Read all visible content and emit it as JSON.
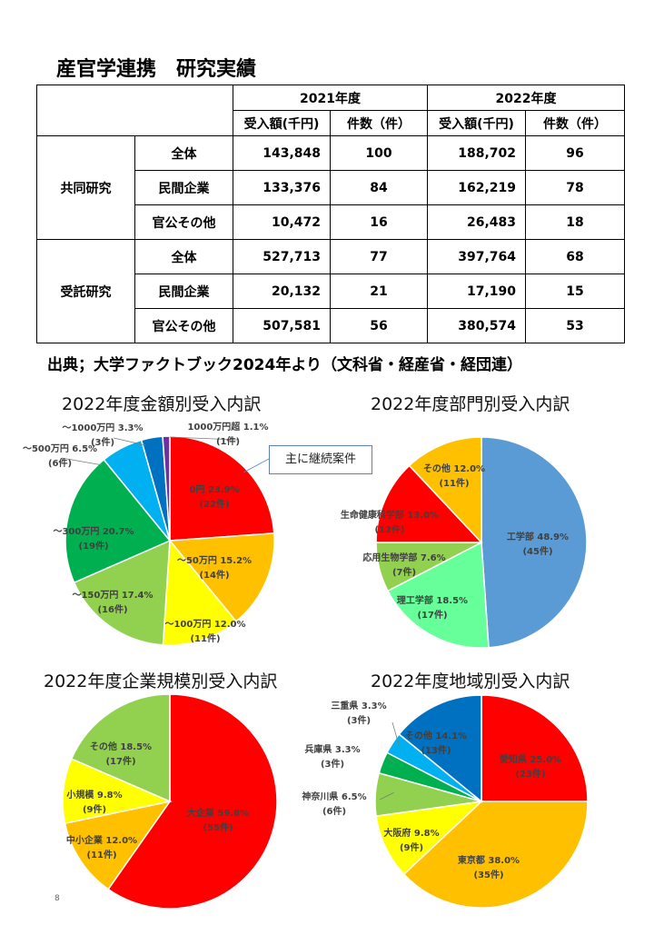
{
  "page": {
    "title": "産官学連携　研究実績",
    "source": "出典；大学ファクトブック2024年より（文科省・経産省・経団連）",
    "page_number": "8"
  },
  "table": {
    "years": [
      "2021年度",
      "2022年度"
    ],
    "subheaders": [
      "受入額(千円)",
      "件数（件）",
      "受入額(千円)",
      "件数（件）"
    ],
    "groups": [
      {
        "name": "共同研究",
        "rows": [
          {
            "label": "全体",
            "v": [
              "143,848",
              "100",
              "188,702",
              "96"
            ]
          },
          {
            "label": "民間企業",
            "v": [
              "133,376",
              "84",
              "162,219",
              "78"
            ]
          },
          {
            "label": "官公その他",
            "v": [
              "10,472",
              "16",
              "26,483",
              "18"
            ]
          }
        ]
      },
      {
        "name": "受託研究",
        "rows": [
          {
            "label": "全体",
            "v": [
              "527,713",
              "77",
              "397,764",
              "68"
            ]
          },
          {
            "label": "民間企業",
            "v": [
              "20,132",
              "21",
              "17,190",
              "15"
            ]
          },
          {
            "label": "官公その他",
            "v": [
              "507,581",
              "56",
              "380,574",
              "53"
            ]
          }
        ]
      }
    ]
  },
  "chart_data": [
    {
      "type": "pie",
      "title": "2022年度金額別受入内訳",
      "annotation": "主に継続案件",
      "slices": [
        {
          "name": "0円",
          "pct": "23.9%",
          "count": "(22件)",
          "value": 23.9,
          "color": "#ff0000"
        },
        {
          "name": "～50万円",
          "pct": "15.2%",
          "count": "(14件)",
          "value": 15.2,
          "color": "#ffc000"
        },
        {
          "name": "～100万円",
          "pct": "12.0%",
          "count": "(11件)",
          "value": 12.0,
          "color": "#ffff00"
        },
        {
          "name": "～150万円",
          "pct": "17.4%",
          "count": "(16件)",
          "value": 17.4,
          "color": "#92d050"
        },
        {
          "name": "～300万円",
          "pct": "20.7%",
          "count": "(19件)",
          "value": 20.7,
          "color": "#00b050"
        },
        {
          "name": "～500万円",
          "pct": "6.5%",
          "count": "(6件)",
          "value": 6.5,
          "color": "#00b0f0"
        },
        {
          "name": "～1000万円",
          "pct": "3.3%",
          "count": "(3件)",
          "value": 3.3,
          "color": "#0070c0"
        },
        {
          "name": "1000万円超",
          "pct": "1.1%",
          "count": "(1件)",
          "value": 1.1,
          "color": "#7030a0"
        }
      ]
    },
    {
      "type": "pie",
      "title": "2022年度部門別受入内訳",
      "slices": [
        {
          "name": "工学部",
          "pct": "48.9%",
          "count": "(45件)",
          "value": 48.9,
          "color": "#5b9bd5"
        },
        {
          "name": "理工学部",
          "pct": "18.5%",
          "count": "(17件)",
          "value": 18.5,
          "color": "#66ff99"
        },
        {
          "name": "応用生物学部",
          "pct": "7.6%",
          "count": "(7件)",
          "value": 7.6,
          "color": "#92d050"
        },
        {
          "name": "生命健康科学部",
          "pct": "13.0%",
          "count": "(12件)",
          "value": 13.0,
          "color": "#ff0000"
        },
        {
          "name": "その他",
          "pct": "12.0%",
          "count": "(11件)",
          "value": 12.0,
          "color": "#ffc000"
        }
      ]
    },
    {
      "type": "pie",
      "title": "2022年度企業規模別受入内訳",
      "slices": [
        {
          "name": "大企業",
          "pct": "59.8%",
          "count": "(55件)",
          "value": 59.8,
          "color": "#ff0000"
        },
        {
          "name": "中小企業",
          "pct": "12.0%",
          "count": "(11件)",
          "value": 12.0,
          "color": "#ffc000"
        },
        {
          "name": "小規模",
          "pct": "9.8%",
          "count": "(9件)",
          "value": 9.8,
          "color": "#ffff00"
        },
        {
          "name": "その他",
          "pct": "18.5%",
          "count": "(17件)",
          "value": 18.5,
          "color": "#92d050"
        }
      ]
    },
    {
      "type": "pie",
      "title": "2022年度地域別受入内訳",
      "slices": [
        {
          "name": "愛知県",
          "pct": "25.0%",
          "count": "(23件)",
          "value": 25.0,
          "color": "#ff0000"
        },
        {
          "name": "東京都",
          "pct": "38.0%",
          "count": "(35件)",
          "value": 38.0,
          "color": "#ffc000"
        },
        {
          "name": "大阪府",
          "pct": "9.8%",
          "count": "(9件)",
          "value": 9.8,
          "color": "#ffff00"
        },
        {
          "name": "神奈川県",
          "pct": "6.5%",
          "count": "(6件)",
          "value": 6.5,
          "color": "#92d050"
        },
        {
          "name": "兵庫県",
          "pct": "3.3%",
          "count": "(3件)",
          "value": 3.3,
          "color": "#00b050"
        },
        {
          "name": "三重県",
          "pct": "3.3%",
          "count": "(3件)",
          "value": 3.3,
          "color": "#00b0f0"
        },
        {
          "name": "その他",
          "pct": "14.1%",
          "count": "(13件)",
          "value": 14.1,
          "color": "#0070c0"
        }
      ]
    }
  ]
}
